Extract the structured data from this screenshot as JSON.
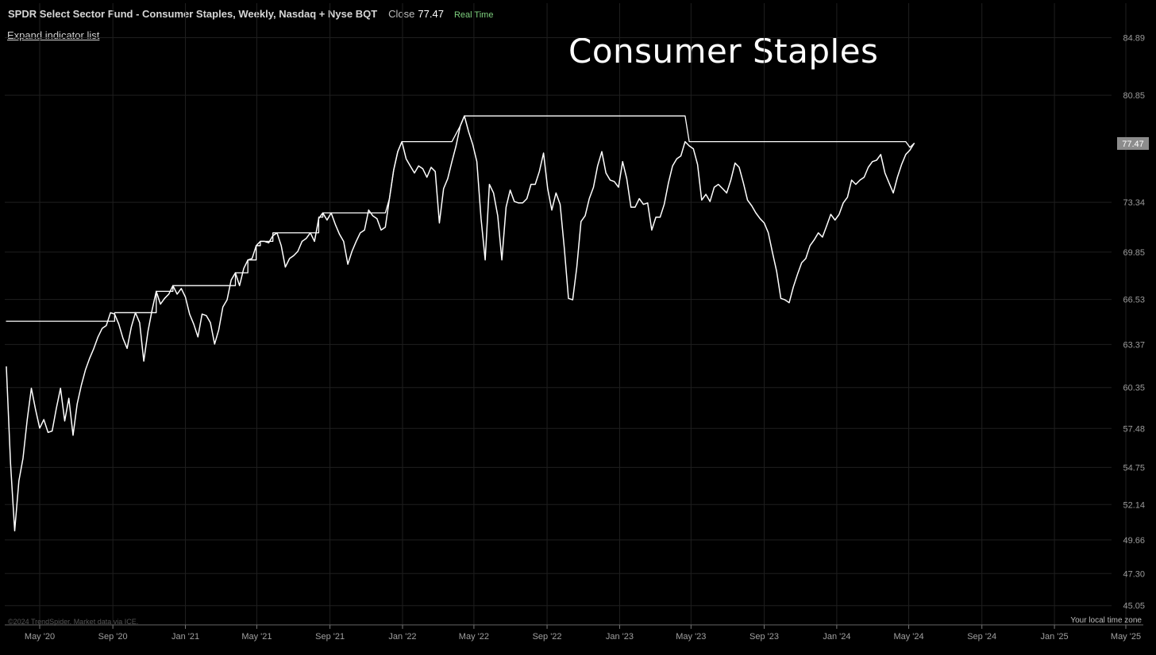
{
  "header": {
    "symbol": "SPDR Select Sector Fund - Consumer Staples, Weekly, Nasdaq + Nyse BQT",
    "close_label": "Close",
    "close_value": "77.47",
    "realtime_label": "Real Time",
    "realtime_color": "#7ed07e"
  },
  "expand_label": "Expand indicator list",
  "overlay_title": "Consumer Staples",
  "footer": {
    "copyright": "©2024 TrendSpider. Market data via ICE.",
    "timezone": "Your local time zone"
  },
  "chart_data": {
    "type": "line",
    "title": "Consumer Staples",
    "xlabel": "",
    "ylabel": "",
    "background": "#000000",
    "line_color": "#ffffff",
    "grid": true,
    "ylim": [
      43.7,
      86.2
    ],
    "y_ticks": [
      84.89,
      80.85,
      73.34,
      69.85,
      66.53,
      63.37,
      60.35,
      57.48,
      54.75,
      52.14,
      49.66,
      47.3,
      45.05
    ],
    "current_price_label": 77.47,
    "x_ticks": [
      {
        "label": "May '20",
        "date": "2020-05-01"
      },
      {
        "label": "Sep '20",
        "date": "2020-09-01"
      },
      {
        "label": "Jan '21",
        "date": "2021-01-01"
      },
      {
        "label": "May '21",
        "date": "2021-05-01"
      },
      {
        "label": "Sep '21",
        "date": "2021-09-01"
      },
      {
        "label": "Jan '22",
        "date": "2022-01-01"
      },
      {
        "label": "May '22",
        "date": "2022-05-01"
      },
      {
        "label": "Sep '22",
        "date": "2022-09-01"
      },
      {
        "label": "Jan '23",
        "date": "2023-01-01"
      },
      {
        "label": "May '23",
        "date": "2023-05-01"
      },
      {
        "label": "Sep '23",
        "date": "2023-09-01"
      },
      {
        "label": "Jan '24",
        "date": "2024-01-01"
      },
      {
        "label": "May '24",
        "date": "2024-05-01"
      },
      {
        "label": "Sep '24",
        "date": "2024-09-01"
      },
      {
        "label": "Jan '25",
        "date": "2025-01-01"
      },
      {
        "label": "May '25",
        "date": "2025-05-01"
      }
    ],
    "series": [
      {
        "role": "close",
        "points": [
          [
            "2020-03-06",
            61.8
          ],
          [
            "2020-03-13",
            55.0
          ],
          [
            "2020-03-20",
            50.3
          ],
          [
            "2020-03-27",
            53.8
          ],
          [
            "2020-04-03",
            55.4
          ],
          [
            "2020-04-10",
            58.1
          ],
          [
            "2020-04-17",
            60.3
          ],
          [
            "2020-04-24",
            58.8
          ],
          [
            "2020-05-01",
            57.5
          ],
          [
            "2020-05-08",
            58.1
          ],
          [
            "2020-05-15",
            57.2
          ],
          [
            "2020-05-22",
            57.3
          ],
          [
            "2020-05-29",
            58.9
          ],
          [
            "2020-06-05",
            60.3
          ],
          [
            "2020-06-12",
            58.0
          ],
          [
            "2020-06-19",
            59.6
          ],
          [
            "2020-06-26",
            57.0
          ],
          [
            "2020-07-03",
            59.2
          ],
          [
            "2020-07-10",
            60.5
          ],
          [
            "2020-07-17",
            61.6
          ],
          [
            "2020-07-24",
            62.4
          ],
          [
            "2020-07-31",
            63.1
          ],
          [
            "2020-08-07",
            63.9
          ],
          [
            "2020-08-14",
            64.5
          ],
          [
            "2020-08-21",
            64.7
          ],
          [
            "2020-08-28",
            65.6
          ],
          [
            "2020-09-04",
            65.5
          ],
          [
            "2020-09-11",
            64.8
          ],
          [
            "2020-09-18",
            63.8
          ],
          [
            "2020-09-25",
            63.1
          ],
          [
            "2020-10-02",
            64.6
          ],
          [
            "2020-10-09",
            65.6
          ],
          [
            "2020-10-16",
            64.9
          ],
          [
            "2020-10-23",
            62.2
          ],
          [
            "2020-10-30",
            64.3
          ],
          [
            "2020-11-06",
            65.8
          ],
          [
            "2020-11-13",
            67.1
          ],
          [
            "2020-11-20",
            66.2
          ],
          [
            "2020-11-27",
            66.6
          ],
          [
            "2020-12-04",
            66.9
          ],
          [
            "2020-12-11",
            67.5
          ],
          [
            "2020-12-18",
            66.9
          ],
          [
            "2020-12-25",
            67.3
          ],
          [
            "2021-01-01",
            66.7
          ],
          [
            "2021-01-08",
            65.5
          ],
          [
            "2021-01-15",
            64.8
          ],
          [
            "2021-01-22",
            63.9
          ],
          [
            "2021-01-29",
            65.5
          ],
          [
            "2021-02-05",
            65.4
          ],
          [
            "2021-02-12",
            64.9
          ],
          [
            "2021-02-19",
            63.4
          ],
          [
            "2021-02-26",
            64.4
          ],
          [
            "2021-03-05",
            66.0
          ],
          [
            "2021-03-12",
            66.5
          ],
          [
            "2021-03-19",
            67.9
          ],
          [
            "2021-03-26",
            68.4
          ],
          [
            "2021-04-02",
            67.5
          ],
          [
            "2021-04-09",
            68.7
          ],
          [
            "2021-04-16",
            69.3
          ],
          [
            "2021-04-23",
            69.4
          ],
          [
            "2021-04-30",
            70.3
          ],
          [
            "2021-05-07",
            70.6
          ],
          [
            "2021-05-14",
            70.6
          ],
          [
            "2021-05-21",
            70.5
          ],
          [
            "2021-05-28",
            71.0
          ],
          [
            "2021-06-04",
            71.2
          ],
          [
            "2021-06-11",
            70.3
          ],
          [
            "2021-06-18",
            68.8
          ],
          [
            "2021-06-25",
            69.4
          ],
          [
            "2021-07-02",
            69.6
          ],
          [
            "2021-07-09",
            69.9
          ],
          [
            "2021-07-16",
            70.6
          ],
          [
            "2021-07-23",
            70.8
          ],
          [
            "2021-07-30",
            71.2
          ],
          [
            "2021-08-06",
            70.6
          ],
          [
            "2021-08-13",
            72.2
          ],
          [
            "2021-08-20",
            72.6
          ],
          [
            "2021-08-27",
            72.1
          ],
          [
            "2021-09-03",
            72.6
          ],
          [
            "2021-09-10",
            71.8
          ],
          [
            "2021-09-17",
            71.1
          ],
          [
            "2021-09-24",
            70.6
          ],
          [
            "2021-10-01",
            69.0
          ],
          [
            "2021-10-08",
            69.9
          ],
          [
            "2021-10-15",
            70.6
          ],
          [
            "2021-10-22",
            71.2
          ],
          [
            "2021-10-29",
            71.4
          ],
          [
            "2021-11-05",
            72.8
          ],
          [
            "2021-11-12",
            72.4
          ],
          [
            "2021-11-19",
            72.2
          ],
          [
            "2021-11-26",
            71.4
          ],
          [
            "2021-12-03",
            71.6
          ],
          [
            "2021-12-10",
            73.6
          ],
          [
            "2021-12-17",
            75.6
          ],
          [
            "2021-12-24",
            76.9
          ],
          [
            "2021-12-31",
            77.6
          ],
          [
            "2022-01-07",
            76.4
          ],
          [
            "2022-01-14",
            75.9
          ],
          [
            "2022-01-21",
            75.4
          ],
          [
            "2022-01-28",
            75.9
          ],
          [
            "2022-02-04",
            75.7
          ],
          [
            "2022-02-11",
            75.1
          ],
          [
            "2022-02-18",
            75.8
          ],
          [
            "2022-02-25",
            75.5
          ],
          [
            "2022-03-04",
            71.9
          ],
          [
            "2022-03-11",
            74.3
          ],
          [
            "2022-03-18",
            75.0
          ],
          [
            "2022-03-25",
            76.2
          ],
          [
            "2022-04-01",
            77.3
          ],
          [
            "2022-04-08",
            78.7
          ],
          [
            "2022-04-15",
            79.4
          ],
          [
            "2022-04-22",
            78.3
          ],
          [
            "2022-04-29",
            77.4
          ],
          [
            "2022-05-06",
            76.2
          ],
          [
            "2022-05-13",
            72.2
          ],
          [
            "2022-05-20",
            69.3
          ],
          [
            "2022-05-27",
            74.6
          ],
          [
            "2022-06-03",
            74.0
          ],
          [
            "2022-06-10",
            72.4
          ],
          [
            "2022-06-17",
            69.3
          ],
          [
            "2022-06-24",
            73.0
          ],
          [
            "2022-07-01",
            74.2
          ],
          [
            "2022-07-08",
            73.4
          ],
          [
            "2022-07-15",
            73.3
          ],
          [
            "2022-07-22",
            73.3
          ],
          [
            "2022-07-29",
            73.6
          ],
          [
            "2022-08-05",
            74.6
          ],
          [
            "2022-08-12",
            74.6
          ],
          [
            "2022-08-19",
            75.5
          ],
          [
            "2022-08-26",
            76.8
          ],
          [
            "2022-09-02",
            74.3
          ],
          [
            "2022-09-09",
            72.8
          ],
          [
            "2022-09-16",
            74.0
          ],
          [
            "2022-09-23",
            73.2
          ],
          [
            "2022-09-30",
            70.1
          ],
          [
            "2022-10-07",
            66.6
          ],
          [
            "2022-10-14",
            66.5
          ],
          [
            "2022-10-21",
            68.8
          ],
          [
            "2022-10-28",
            72.0
          ],
          [
            "2022-11-04",
            72.4
          ],
          [
            "2022-11-11",
            73.6
          ],
          [
            "2022-11-18",
            74.4
          ],
          [
            "2022-11-25",
            75.9
          ],
          [
            "2022-12-02",
            76.9
          ],
          [
            "2022-12-09",
            75.4
          ],
          [
            "2022-12-16",
            74.9
          ],
          [
            "2022-12-23",
            74.8
          ],
          [
            "2022-12-30",
            74.4
          ],
          [
            "2023-01-06",
            76.2
          ],
          [
            "2023-01-13",
            75.0
          ],
          [
            "2023-01-20",
            73.0
          ],
          [
            "2023-01-27",
            73.0
          ],
          [
            "2023-02-03",
            73.6
          ],
          [
            "2023-02-10",
            73.2
          ],
          [
            "2023-02-17",
            73.3
          ],
          [
            "2023-02-24",
            71.4
          ],
          [
            "2023-03-03",
            72.3
          ],
          [
            "2023-03-10",
            72.3
          ],
          [
            "2023-03-17",
            73.2
          ],
          [
            "2023-03-24",
            74.7
          ],
          [
            "2023-03-31",
            75.9
          ],
          [
            "2023-04-07",
            76.4
          ],
          [
            "2023-04-14",
            76.6
          ],
          [
            "2023-04-21",
            77.6
          ],
          [
            "2023-04-28",
            77.3
          ],
          [
            "2023-05-05",
            77.1
          ],
          [
            "2023-05-12",
            76.0
          ],
          [
            "2023-05-19",
            73.5
          ],
          [
            "2023-05-26",
            73.9
          ],
          [
            "2023-06-02",
            73.4
          ],
          [
            "2023-06-09",
            74.4
          ],
          [
            "2023-06-16",
            74.6
          ],
          [
            "2023-06-23",
            74.3
          ],
          [
            "2023-06-30",
            74.0
          ],
          [
            "2023-07-07",
            74.9
          ],
          [
            "2023-07-14",
            76.1
          ],
          [
            "2023-07-21",
            75.8
          ],
          [
            "2023-07-28",
            74.7
          ],
          [
            "2023-08-04",
            73.5
          ],
          [
            "2023-08-11",
            73.1
          ],
          [
            "2023-08-18",
            72.6
          ],
          [
            "2023-08-25",
            72.2
          ],
          [
            "2023-09-01",
            71.9
          ],
          [
            "2023-09-08",
            71.2
          ],
          [
            "2023-09-15",
            69.8
          ],
          [
            "2023-09-22",
            68.5
          ],
          [
            "2023-09-29",
            66.6
          ],
          [
            "2023-10-06",
            66.5
          ],
          [
            "2023-10-13",
            66.3
          ],
          [
            "2023-10-20",
            67.4
          ],
          [
            "2023-10-27",
            68.3
          ],
          [
            "2023-11-03",
            69.1
          ],
          [
            "2023-11-10",
            69.4
          ],
          [
            "2023-11-17",
            70.3
          ],
          [
            "2023-11-24",
            70.7
          ],
          [
            "2023-12-01",
            71.2
          ],
          [
            "2023-12-08",
            70.9
          ],
          [
            "2023-12-15",
            71.7
          ],
          [
            "2023-12-22",
            72.5
          ],
          [
            "2023-12-29",
            72.1
          ],
          [
            "2024-01-05",
            72.5
          ],
          [
            "2024-01-12",
            73.3
          ],
          [
            "2024-01-19",
            73.7
          ],
          [
            "2024-01-26",
            74.9
          ],
          [
            "2024-02-02",
            74.6
          ],
          [
            "2024-02-09",
            74.9
          ],
          [
            "2024-02-16",
            75.1
          ],
          [
            "2024-02-23",
            75.8
          ],
          [
            "2024-03-01",
            76.2
          ],
          [
            "2024-03-08",
            76.3
          ],
          [
            "2024-03-15",
            76.7
          ],
          [
            "2024-03-22",
            75.4
          ],
          [
            "2024-03-29",
            74.7
          ],
          [
            "2024-04-05",
            74.0
          ],
          [
            "2024-04-12",
            75.1
          ],
          [
            "2024-04-19",
            76.0
          ],
          [
            "2024-04-26",
            76.7
          ],
          [
            "2024-05-03",
            77.0
          ],
          [
            "2024-05-10",
            77.47
          ]
        ]
      },
      {
        "role": "running-high",
        "points": [
          [
            "2020-03-06",
            65.0
          ],
          [
            "2020-09-04",
            65.0
          ],
          [
            "2020-09-04",
            65.6
          ],
          [
            "2020-11-13",
            65.6
          ],
          [
            "2020-11-13",
            67.1
          ],
          [
            "2020-12-11",
            67.1
          ],
          [
            "2020-12-11",
            67.5
          ],
          [
            "2021-03-26",
            67.5
          ],
          [
            "2021-03-26",
            68.4
          ],
          [
            "2021-04-16",
            68.4
          ],
          [
            "2021-04-16",
            69.3
          ],
          [
            "2021-04-30",
            69.3
          ],
          [
            "2021-04-30",
            70.3
          ],
          [
            "2021-05-07",
            70.3
          ],
          [
            "2021-05-07",
            70.6
          ],
          [
            "2021-05-28",
            70.6
          ],
          [
            "2021-05-28",
            71.2
          ],
          [
            "2021-08-13",
            71.2
          ],
          [
            "2021-08-13",
            72.3
          ],
          [
            "2021-08-20",
            72.3
          ],
          [
            "2021-08-20",
            72.6
          ],
          [
            "2021-12-03",
            72.6
          ],
          [
            "2021-12-10",
            73.6
          ],
          [
            "2021-12-17",
            75.6
          ],
          [
            "2021-12-24",
            76.9
          ],
          [
            "2021-12-31",
            77.6
          ],
          [
            "2022-03-25",
            77.6
          ],
          [
            "2022-04-08",
            78.7
          ],
          [
            "2022-04-15",
            79.4
          ],
          [
            "2023-04-21",
            79.4
          ],
          [
            "2023-04-28",
            77.6
          ],
          [
            "2024-04-26",
            77.6
          ],
          [
            "2024-05-03",
            77.2
          ],
          [
            "2024-05-10",
            77.47
          ]
        ]
      }
    ]
  }
}
